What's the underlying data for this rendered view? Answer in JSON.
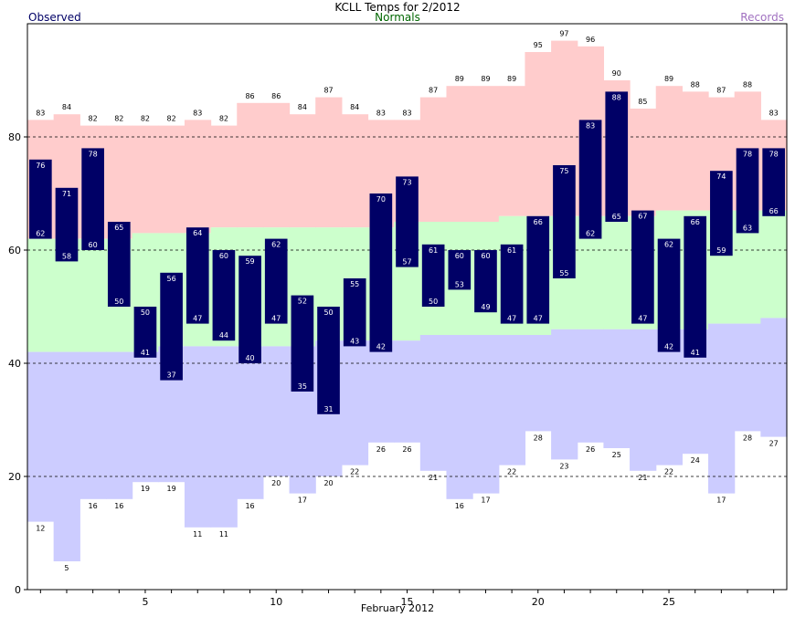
{
  "chart_data": {
    "type": "bar",
    "title": "KCLL Temps for 2/2012",
    "legend": {
      "observed": {
        "label": "Observed",
        "color": "#000066"
      },
      "normals": {
        "label": "Normals",
        "color": "#006600"
      },
      "records": {
        "label": "Records",
        "color": "#a070c0"
      }
    },
    "xlabel": "February 2012",
    "days": [
      1,
      2,
      3,
      4,
      5,
      6,
      7,
      8,
      9,
      10,
      11,
      12,
      13,
      14,
      15,
      16,
      17,
      18,
      19,
      20,
      21,
      22,
      23,
      24,
      25,
      26,
      27,
      28,
      29
    ],
    "x_ticks": [
      5,
      10,
      15,
      20,
      25
    ],
    "y_ticks": [
      0,
      20,
      40,
      60,
      80
    ],
    "ylim": [
      0,
      100
    ],
    "grid": "dashed at 20, 40, 60, 80",
    "series": [
      {
        "name": "Record High",
        "color": "#ffcccc",
        "values": [
          83,
          84,
          82,
          82,
          82,
          82,
          83,
          82,
          86,
          86,
          84,
          87,
          84,
          83,
          83,
          87,
          89,
          89,
          89,
          95,
          97,
          96,
          90,
          85,
          89,
          88,
          87,
          88,
          83
        ]
      },
      {
        "name": "Normal High",
        "color": "#ccffcc",
        "values": [
          62,
          62,
          62,
          62,
          63,
          63,
          63,
          64,
          64,
          64,
          64,
          64,
          64,
          64,
          65,
          65,
          65,
          65,
          66,
          66,
          66,
          66,
          66,
          66,
          67,
          67,
          67,
          67,
          67
        ]
      },
      {
        "name": "Normal Low",
        "color": "#ccccff",
        "values": [
          42,
          42,
          42,
          42,
          42,
          43,
          43,
          43,
          43,
          43,
          43,
          44,
          44,
          44,
          44,
          45,
          45,
          45,
          45,
          45,
          46,
          46,
          46,
          46,
          46,
          46,
          47,
          47,
          48
        ]
      },
      {
        "name": "Record Low",
        "color": "#ffffff",
        "values": [
          12,
          5,
          16,
          16,
          19,
          19,
          11,
          11,
          16,
          20,
          17,
          20,
          22,
          26,
          26,
          21,
          16,
          17,
          22,
          28,
          23,
          26,
          25,
          21,
          22,
          24,
          17,
          28,
          27
        ]
      },
      {
        "name": "Observed High",
        "color": "#000066",
        "values": [
          76,
          71,
          78,
          65,
          50,
          56,
          64,
          60,
          59,
          62,
          52,
          50,
          55,
          70,
          73,
          61,
          60,
          60,
          61,
          66,
          75,
          83,
          88,
          67,
          62,
          66,
          74,
          78,
          78
        ]
      },
      {
        "name": "Observed Low",
        "color": "#000066",
        "values": [
          62,
          58,
          60,
          50,
          41,
          37,
          47,
          44,
          40,
          47,
          35,
          31,
          43,
          42,
          57,
          50,
          53,
          49,
          47,
          47,
          55,
          62,
          65,
          47,
          42,
          41,
          59,
          63,
          66
        ]
      }
    ]
  }
}
